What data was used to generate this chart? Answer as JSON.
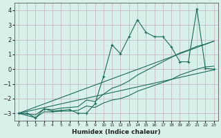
{
  "xlabel": "Humidex (Indice chaleur)",
  "xlim": [
    -0.5,
    23.5
  ],
  "ylim": [
    -3.5,
    4.5
  ],
  "yticks": [
    -3,
    -2,
    -1,
    0,
    1,
    2,
    3,
    4
  ],
  "xticks": [
    0,
    1,
    2,
    3,
    4,
    5,
    6,
    7,
    8,
    9,
    10,
    11,
    12,
    13,
    14,
    15,
    16,
    17,
    18,
    19,
    20,
    21,
    22,
    23
  ],
  "bg_color": "#d8f0ea",
  "grid_color": "#c8b8c8",
  "line_color": "#1a6b5a",
  "series_main": [
    [
      0,
      -3.0
    ],
    [
      1,
      -3.0
    ],
    [
      2,
      -3.3
    ],
    [
      3,
      -2.7
    ],
    [
      4,
      -2.85
    ],
    [
      5,
      -2.8
    ],
    [
      6,
      -2.75
    ],
    [
      7,
      -3.0
    ],
    [
      8,
      -3.0
    ],
    [
      9,
      -2.35
    ],
    [
      10,
      -0.5
    ],
    [
      11,
      1.65
    ],
    [
      12,
      1.05
    ],
    [
      13,
      2.2
    ],
    [
      14,
      3.35
    ],
    [
      15,
      2.5
    ],
    [
      16,
      2.2
    ],
    [
      17,
      2.2
    ],
    [
      18,
      1.5
    ],
    [
      19,
      0.5
    ],
    [
      20,
      0.5
    ],
    [
      21,
      4.1
    ],
    [
      22,
      0.05
    ],
    [
      23,
      0.0
    ]
  ],
  "series_lower1": [
    [
      0,
      -3.0
    ],
    [
      23,
      -0.05
    ]
  ],
  "series_lower2": [
    [
      0,
      -3.0
    ],
    [
      2,
      -3.3
    ],
    [
      3,
      -2.9
    ],
    [
      4,
      -2.9
    ],
    [
      5,
      -2.85
    ],
    [
      6,
      -2.85
    ],
    [
      7,
      -2.8
    ],
    [
      8,
      -2.5
    ],
    [
      9,
      -2.6
    ],
    [
      10,
      -2.3
    ],
    [
      11,
      -2.1
    ],
    [
      12,
      -2.0
    ],
    [
      13,
      -1.8
    ],
    [
      14,
      -1.5
    ],
    [
      15,
      -1.3
    ],
    [
      16,
      -1.1
    ],
    [
      17,
      -0.9
    ],
    [
      18,
      -0.7
    ],
    [
      19,
      -0.4
    ],
    [
      20,
      -0.2
    ],
    [
      21,
      0.0
    ],
    [
      22,
      0.15
    ],
    [
      23,
      0.2
    ]
  ],
  "series_upper": [
    [
      0,
      -3.0
    ],
    [
      2,
      -3.1
    ],
    [
      3,
      -2.7
    ],
    [
      4,
      -2.75
    ],
    [
      5,
      -2.65
    ],
    [
      6,
      -2.6
    ],
    [
      7,
      -2.55
    ],
    [
      8,
      -2.1
    ],
    [
      9,
      -2.2
    ],
    [
      10,
      -1.7
    ],
    [
      11,
      -1.3
    ],
    [
      12,
      -1.1
    ],
    [
      13,
      -0.8
    ],
    [
      14,
      -0.4
    ],
    [
      15,
      -0.1
    ],
    [
      16,
      0.2
    ],
    [
      17,
      0.5
    ],
    [
      18,
      0.8
    ],
    [
      19,
      1.1
    ],
    [
      20,
      1.3
    ],
    [
      21,
      1.55
    ],
    [
      22,
      1.7
    ],
    [
      23,
      1.9
    ]
  ],
  "series_trend": [
    [
      0,
      -3.0
    ],
    [
      23,
      1.9
    ]
  ]
}
